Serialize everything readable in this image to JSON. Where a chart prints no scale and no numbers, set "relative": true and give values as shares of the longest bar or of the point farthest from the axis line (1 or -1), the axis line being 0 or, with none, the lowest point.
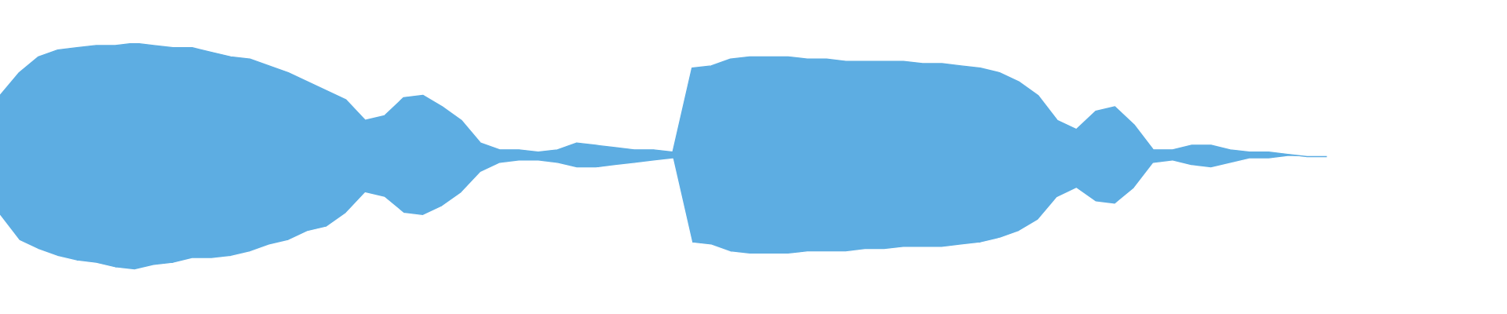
{
  "chart_data": {
    "type": "area",
    "relative": true,
    "stacked": true,
    "categories": [
      null,
      null,
      null,
      null,
      null,
      null,
      null,
      null,
      null,
      null,
      null,
      null,
      null,
      null,
      null,
      null,
      null,
      null,
      null,
      null,
      null,
      null,
      null,
      null,
      null,
      null,
      null,
      null,
      null,
      null,
      null,
      null,
      null,
      null,
      null,
      null,
      null,
      null,
      null,
      null,
      null,
      null,
      null,
      null,
      null,
      null,
      null,
      null,
      null,
      null,
      null,
      null,
      null,
      null,
      null,
      null,
      null,
      null,
      null,
      null,
      null,
      null,
      null,
      null,
      null,
      null,
      null,
      null,
      null,
      null,
      null,
      null,
      null,
      null,
      null,
      null,
      null,
      null,
      null
    ],
    "series": [
      {
        "color": "#ffffff",
        "values": [
          0.24,
          0.13,
          0.09,
          0.06,
          0.04,
          0.03,
          0.01,
          0.0,
          0.02,
          0.03,
          0.05,
          0.05,
          0.06,
          0.08,
          0.11,
          0.13,
          0.17,
          0.19,
          0.25,
          0.34,
          0.32,
          0.25,
          0.24,
          0.28,
          0.34,
          0.43,
          0.47,
          0.48,
          0.48,
          0.47,
          0.45,
          0.45,
          0.46,
          0.47,
          0.48,
          0.49,
          0.12,
          0.11,
          0.08,
          0.07,
          0.07,
          0.07,
          0.08,
          0.08,
          0.08,
          0.09,
          0.09,
          0.1,
          0.1,
          0.1,
          0.11,
          0.12,
          0.14,
          0.17,
          0.22,
          0.32,
          0.36,
          0.3,
          0.29,
          0.36,
          0.47,
          0.48,
          0.46,
          0.45,
          0.47,
          0.49,
          0.49,
          0.5,
          0.5,
          0.5,
          null,
          null,
          null,
          null,
          null,
          null,
          null,
          null,
          null
        ]
      },
      {
        "color": "#5dade2",
        "values": [
          0.53,
          0.74,
          0.85,
          0.91,
          0.94,
          0.96,
          0.98,
          1.0,
          0.97,
          0.95,
          0.93,
          0.91,
          0.88,
          0.85,
          0.79,
          0.74,
          0.66,
          0.6,
          0.5,
          0.32,
          0.36,
          0.51,
          0.53,
          0.44,
          0.32,
          0.13,
          0.06,
          0.05,
          0.04,
          0.06,
          0.11,
          0.1,
          0.08,
          0.06,
          0.05,
          0.03,
          0.77,
          0.79,
          0.85,
          0.87,
          0.87,
          0.87,
          0.85,
          0.85,
          0.84,
          0.83,
          0.83,
          0.82,
          0.81,
          0.81,
          0.79,
          0.77,
          0.73,
          0.66,
          0.55,
          0.34,
          0.26,
          0.4,
          0.43,
          0.28,
          0.06,
          0.05,
          0.09,
          0.1,
          0.06,
          0.03,
          0.03,
          0.01,
          0.0,
          0.0,
          null,
          null,
          null,
          null,
          null,
          null,
          null,
          null,
          null
        ]
      }
    ]
  }
}
